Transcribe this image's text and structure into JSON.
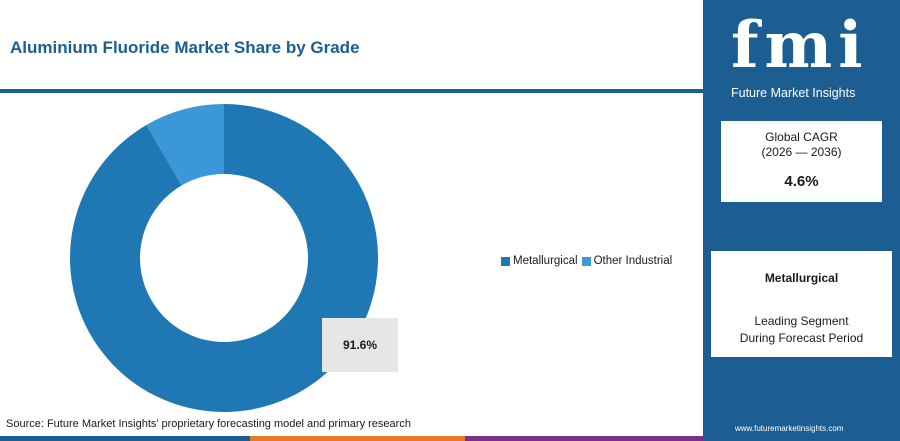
{
  "header": {
    "title": "Aluminium Fluoride Market Share by Grade"
  },
  "chart_data": {
    "type": "pie",
    "donut": true,
    "categories": [
      "Metallurgical",
      "Other Industrial"
    ],
    "values": [
      91.6,
      8.4
    ],
    "colors": [
      "#1f77b4",
      "#3a97d8"
    ],
    "data_labels": [
      "91.6%"
    ],
    "legend_position": "right"
  },
  "legend": {
    "items": [
      {
        "label": "Metallurgical",
        "color": "#1f77b4"
      },
      {
        "label": "Other Industrial",
        "color": "#3a97d8"
      }
    ]
  },
  "source": "Source: Future Market Insights’ proprietary forecasting model and primary research",
  "sidebar": {
    "logo_letters": "fmi",
    "logo_text": "Future Market Insights",
    "cagr_label_line1": "Global CAGR",
    "cagr_label_line2": "(2026 — 2036)",
    "cagr_value": "4.6%",
    "segment_name": "Metallurgical",
    "segment_desc_line1": "Leading Segment",
    "segment_desc_line2": "During Forecast Period",
    "website": "www.futuremarketinsights.com"
  },
  "colors": {
    "brand": "#1c5e92",
    "bar_orange": "#e8782a",
    "bar_purple": "#7b2f8e"
  }
}
